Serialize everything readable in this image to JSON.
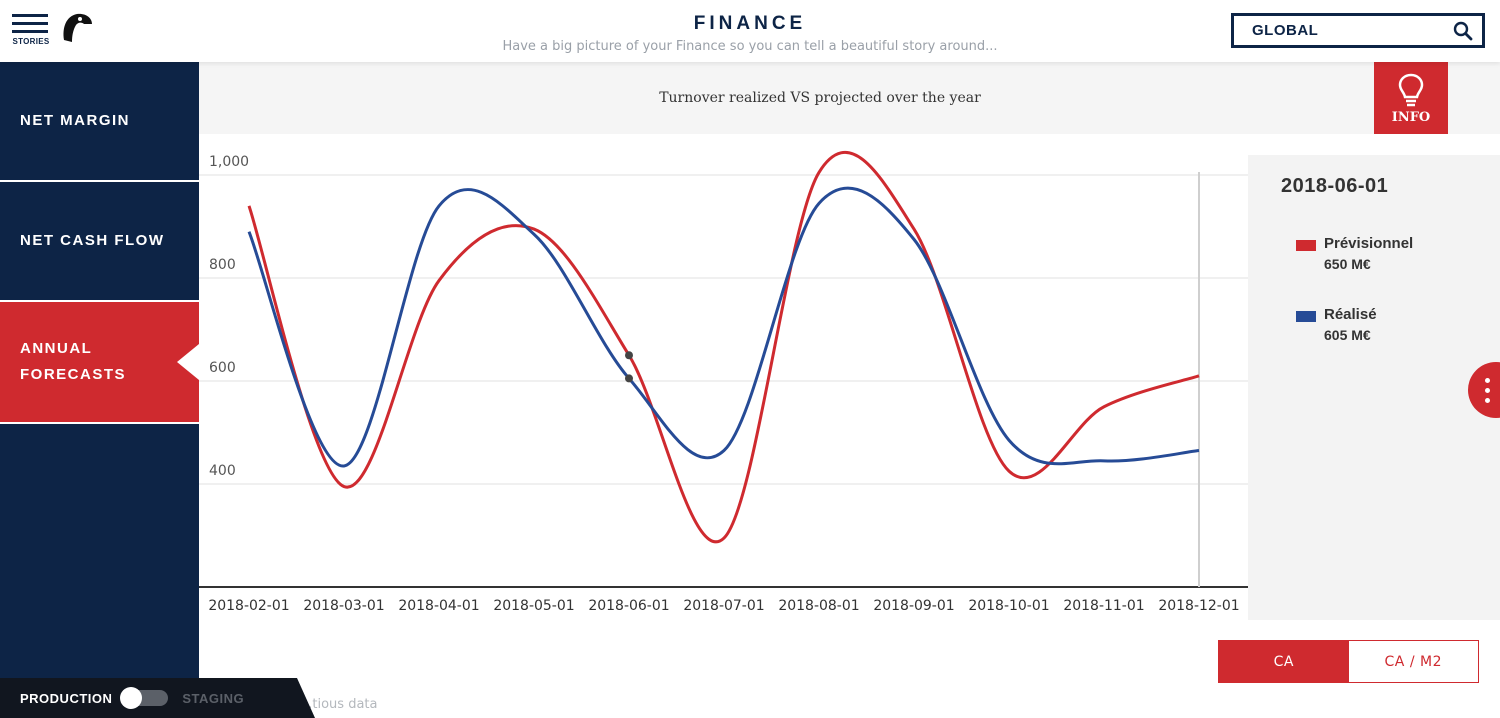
{
  "header": {
    "menu_label": "STORIES",
    "title": "FINANCE",
    "subtitle": "Have a big picture of your Finance so you can tell a beautiful story around...",
    "search_value": "GLOBAL"
  },
  "sidebar": {
    "items": [
      {
        "label": "NET MARGIN",
        "active": false
      },
      {
        "label": "NET CASH FLOW",
        "active": false
      },
      {
        "label": "ANNUAL FORECASTS",
        "active": true
      }
    ]
  },
  "env": {
    "production": "PRODUCTION",
    "staging": "STAGING"
  },
  "footer_note": "...tious data",
  "info_label": "INFO",
  "tooltip": {
    "date": "2018-06-01",
    "entries": [
      {
        "name": "Prévisionnel",
        "value": "650 M€",
        "color": "#cf2a2f"
      },
      {
        "name": "Réalisé",
        "value": "605 M€",
        "color": "#264b96"
      }
    ]
  },
  "toggle": {
    "ca": "CA",
    "ca_m2": "CA / M2"
  },
  "chart_data": {
    "type": "line",
    "title": "Turnover realized VS projected over the year",
    "x": [
      "2018-02-01",
      "2018-03-01",
      "2018-04-01",
      "2018-05-01",
      "2018-06-01",
      "2018-07-01",
      "2018-08-01",
      "2018-09-01",
      "2018-10-01",
      "2018-11-01",
      "2018-12-01"
    ],
    "series": [
      {
        "name": "Prévisionnel",
        "color": "#cf2a2f",
        "values": [
          940,
          395,
          795,
          895,
          650,
          295,
          1005,
          895,
          425,
          550,
          610
        ]
      },
      {
        "name": "Réalisé",
        "color": "#264b96",
        "values": [
          890,
          435,
          940,
          885,
          605,
          465,
          945,
          875,
          485,
          445,
          465
        ]
      }
    ],
    "yticks": [
      400,
      600,
      800,
      1000
    ],
    "ytick_labels": [
      "400",
      "600",
      "800",
      "1,000"
    ],
    "ylim": [
      200,
      1000
    ],
    "grid": true,
    "hover_x": "2018-06-01"
  }
}
